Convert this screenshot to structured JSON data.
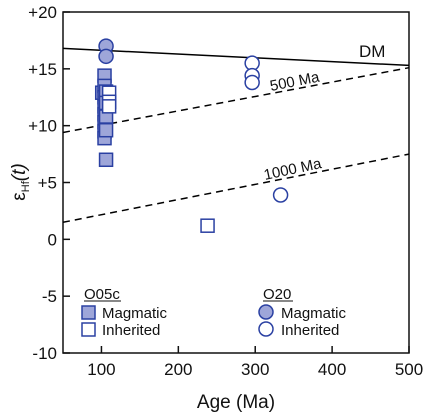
{
  "chart_data": {
    "type": "scatter",
    "xlabel": "Age (Ma)",
    "ylabel_main": "ε",
    "ylabel_sub": "Hf",
    "ylabel_arg": "(t)",
    "xlim": [
      50,
      500
    ],
    "ylim": [
      -10,
      20
    ],
    "x_ticks": [
      "100",
      "200",
      "300",
      "400",
      "500"
    ],
    "x_tick_values": [
      100,
      200,
      300,
      400,
      500
    ],
    "y_ticks": [
      "-10",
      "-5",
      "0",
      "+5",
      "+10",
      "+15",
      "+20"
    ],
    "y_tick_values": [
      -10,
      -5,
      0,
      5,
      10,
      15,
      20
    ],
    "reference_lines": [
      {
        "label": "DM",
        "style": "solid",
        "x": [
          50,
          500
        ],
        "y": [
          16.8,
          15.3
        ]
      },
      {
        "label": "500 Ma",
        "style": "dashed",
        "x": [
          50,
          500
        ],
        "y": [
          9.4,
          15.1
        ]
      },
      {
        "label": "1000 Ma",
        "style": "dashed",
        "x": [
          50,
          500
        ],
        "y": [
          1.5,
          7.5
        ]
      }
    ],
    "series": [
      {
        "group": "O05c",
        "name": "Magmatic",
        "marker": "square",
        "filled": true,
        "points": [
          [
            101,
            12.9
          ],
          [
            104,
            14.4
          ],
          [
            104,
            13.5
          ],
          [
            104,
            12.5
          ],
          [
            104,
            11.7
          ],
          [
            104,
            11.0
          ],
          [
            104,
            10.3
          ],
          [
            104,
            9.5
          ],
          [
            104,
            8.9
          ],
          [
            106,
            13.0
          ],
          [
            106,
            12.0
          ],
          [
            106,
            10.8
          ],
          [
            106,
            9.6
          ],
          [
            106,
            7.0
          ]
        ]
      },
      {
        "group": "O05c",
        "name": "Inherited",
        "marker": "square",
        "filled": false,
        "points": [
          [
            110,
            12.9
          ],
          [
            110,
            12.1
          ],
          [
            110,
            11.7
          ],
          [
            238,
            1.2
          ]
        ]
      },
      {
        "group": "O20",
        "name": "Magmatic",
        "marker": "circle",
        "filled": true,
        "points": [
          [
            106,
            17.0
          ],
          [
            106,
            16.1
          ]
        ]
      },
      {
        "group": "O20",
        "name": "Inherited",
        "marker": "circle",
        "filled": false,
        "points": [
          [
            296,
            15.5
          ],
          [
            296,
            14.4
          ],
          [
            296,
            13.8
          ],
          [
            333,
            3.9
          ]
        ]
      }
    ],
    "legend": {
      "placement": "bottom-left",
      "groups": [
        {
          "title": "O05c",
          "entries": [
            "Magmatic",
            "Inherited"
          ]
        },
        {
          "title": "O20",
          "entries": [
            "Magmatic",
            "Inherited"
          ]
        }
      ]
    },
    "colors": {
      "fill": "#9ea6d9",
      "edge": "#2a40a2",
      "line": "#000000"
    }
  }
}
